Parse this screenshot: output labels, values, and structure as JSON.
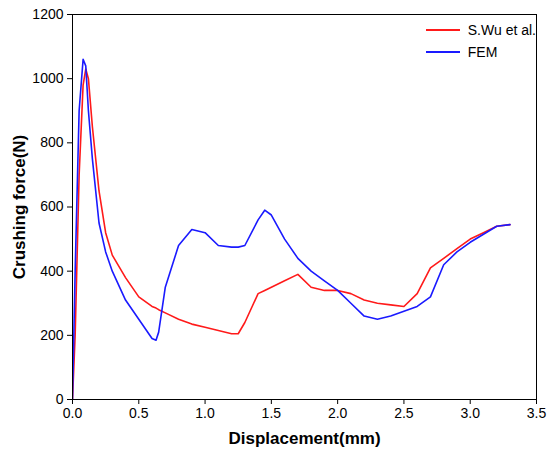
{
  "chart_data": {
    "type": "line",
    "x_label": "Displacement(mm)",
    "y_label": "Crushing force(N)",
    "x": [
      0,
      0.02,
      0.05,
      0.08,
      0.1,
      0.12,
      0.15,
      0.2,
      0.25,
      0.3,
      0.4,
      0.5,
      0.6,
      0.63,
      0.65,
      0.7,
      0.8,
      0.9,
      1.0,
      1.1,
      1.2,
      1.25,
      1.3,
      1.4,
      1.45,
      1.5,
      1.6,
      1.7,
      1.8,
      1.9,
      2.0,
      2.1,
      2.2,
      2.3,
      2.4,
      2.5,
      2.6,
      2.7,
      2.8,
      2.9,
      3.0,
      3.1,
      3.2,
      3.3
    ],
    "series": [
      {
        "name": "S.Wu et al.",
        "color": "#ff1a1a",
        "values": [
          0,
          200,
          700,
          980,
          1030,
          1000,
          850,
          650,
          520,
          450,
          380,
          320,
          290,
          285,
          280,
          270,
          250,
          235,
          225,
          215,
          205,
          205,
          240,
          330,
          340,
          350,
          370,
          390,
          350,
          340,
          340,
          330,
          310,
          300,
          295,
          290,
          330,
          410,
          440,
          470,
          500,
          520,
          540,
          545
        ]
      },
      {
        "name": "FEM",
        "color": "#1a1aff",
        "values": [
          0,
          400,
          900,
          1060,
          1040,
          900,
          750,
          550,
          460,
          400,
          310,
          250,
          190,
          185,
          210,
          350,
          480,
          530,
          520,
          480,
          475,
          475,
          480,
          560,
          590,
          575,
          500,
          440,
          400,
          370,
          340,
          300,
          260,
          250,
          260,
          275,
          290,
          320,
          420,
          460,
          490,
          515,
          540,
          545
        ]
      }
    ],
    "xlim": [
      0,
      3.5
    ],
    "xticks": [
      {
        "value": 0,
        "label": "0.0"
      },
      0.5,
      {
        "value": 1,
        "label": "1.0"
      },
      1.5,
      {
        "value": 2,
        "label": "2.0"
      },
      2.5,
      {
        "value": 3,
        "label": "3.0"
      },
      3.5
    ],
    "ylim": [
      0,
      1200
    ],
    "yticks": [
      0,
      200,
      400,
      600,
      800,
      1000,
      1200
    ],
    "grid": false,
    "legend": "top-right"
  }
}
